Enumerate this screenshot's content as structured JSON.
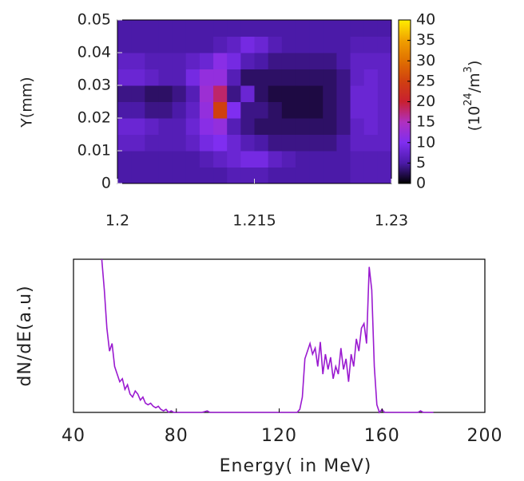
{
  "chart_data": [
    {
      "type": "heatmap",
      "y_label": "Y(mm)",
      "x": [
        1.20075,
        1.20225,
        1.20375,
        1.20525,
        1.20675,
        1.20825,
        1.20975,
        1.21125,
        1.21275,
        1.21425,
        1.21575,
        1.21725,
        1.21875,
        1.22025,
        1.22175,
        1.22325,
        1.22475,
        1.22625,
        1.22775,
        1.22925
      ],
      "y": [
        0.0025,
        0.0075,
        0.0125,
        0.0175,
        0.0225,
        0.0275,
        0.0325,
        0.0375,
        0.0425,
        0.0475
      ],
      "z": [
        [
          5,
          5,
          5,
          5,
          5,
          5,
          5,
          5,
          6,
          6,
          6,
          5,
          5,
          5,
          5,
          5,
          5,
          6,
          6,
          6
        ],
        [
          5,
          5,
          5,
          5,
          5,
          5,
          6,
          7,
          8,
          9,
          9,
          7,
          6,
          5,
          5,
          5,
          5,
          6,
          6,
          6
        ],
        [
          7,
          7,
          6,
          6,
          6,
          7,
          9,
          10,
          8,
          6,
          5,
          4,
          4,
          4,
          4,
          4,
          5,
          7,
          7,
          7
        ],
        [
          8,
          8,
          7,
          6,
          6,
          8,
          11,
          12,
          6,
          4,
          3,
          3,
          3,
          3,
          3,
          3,
          4,
          7,
          8,
          7
        ],
        [
          5,
          5,
          4,
          4,
          5,
          7,
          12,
          25,
          10,
          4,
          4,
          3,
          2,
          2,
          2,
          3,
          4,
          8,
          8,
          7
        ],
        [
          4,
          4,
          3,
          3,
          4,
          6,
          13,
          18,
          4,
          8,
          3,
          2,
          2,
          2,
          2,
          3,
          4,
          8,
          8,
          7
        ],
        [
          8,
          8,
          7,
          6,
          6,
          9,
          12,
          12,
          6,
          3,
          3,
          3,
          3,
          3,
          3,
          3,
          4,
          7,
          8,
          7
        ],
        [
          7,
          7,
          6,
          6,
          6,
          7,
          8,
          11,
          9,
          6,
          5,
          4,
          4,
          4,
          4,
          4,
          5,
          7,
          7,
          7
        ],
        [
          5,
          5,
          5,
          5,
          5,
          5,
          5,
          6,
          7,
          9,
          8,
          6,
          5,
          5,
          5,
          5,
          5,
          6,
          6,
          6
        ],
        [
          5,
          5,
          5,
          5,
          5,
          5,
          5,
          5,
          5,
          5,
          5,
          5,
          5,
          5,
          5,
          5,
          5,
          5,
          5,
          5
        ]
      ],
      "xlim": [
        1.2,
        1.23
      ],
      "xticks": [
        {
          "value": 1.2,
          "label": "1.2"
        },
        1.215,
        1.23
      ],
      "ylim": [
        0,
        0.05
      ],
      "yticks": [
        0,
        0.01,
        0.02,
        0.03,
        0.04,
        0.05
      ],
      "zlim": [
        0,
        40
      ],
      "zticks": [
        0,
        5,
        10,
        15,
        20,
        25,
        30,
        35,
        40
      ],
      "colormap": [
        "#000000",
        "#4b1aa8",
        "#7f2ef0",
        "#b030c0",
        "#c82030",
        "#d04010",
        "#e07000",
        "#f0a000",
        "#ffee00"
      ],
      "colorbar_label": [
        {
          "text": "(10"
        },
        {
          "text": "24",
          "sup": true
        },
        {
          "text": "/m"
        },
        {
          "text": "3",
          "sup": true
        },
        {
          "text": ")"
        }
      ]
    },
    {
      "type": "line",
      "x_label": "Energy( in MeV)",
      "y_label": "dN/dE(a.u)",
      "color": "#9a1ad0",
      "x": [
        51,
        52,
        53,
        54,
        55,
        56,
        57,
        58,
        59,
        60,
        61,
        62,
        63,
        64,
        65,
        66,
        67,
        68,
        69,
        70,
        71,
        72,
        73,
        74,
        75,
        76,
        77,
        78,
        79,
        80,
        85,
        90,
        92,
        93,
        95,
        100,
        105,
        110,
        115,
        120,
        125,
        127,
        128,
        129,
        130,
        131,
        132,
        133,
        134,
        135,
        136,
        137,
        138,
        139,
        140,
        141,
        142,
        143,
        144,
        145,
        146,
        147,
        148,
        149,
        150,
        151,
        152,
        153,
        154,
        155,
        156,
        157,
        158,
        159,
        160,
        161,
        162,
        170,
        174,
        175,
        176,
        180
      ],
      "values": [
        100,
        80,
        55,
        40,
        45,
        30,
        25,
        20,
        22,
        15,
        18,
        12,
        10,
        14,
        12,
        8,
        10,
        6,
        5,
        6,
        4,
        3,
        4,
        2,
        1,
        2,
        0,
        1,
        0,
        0,
        0,
        0,
        1,
        0,
        0,
        0,
        0,
        0,
        0,
        0,
        0,
        0,
        2,
        10,
        35,
        40,
        45,
        38,
        42,
        30,
        46,
        25,
        38,
        28,
        36,
        22,
        30,
        25,
        42,
        28,
        35,
        20,
        38,
        30,
        48,
        40,
        55,
        58,
        45,
        95,
        80,
        30,
        5,
        0,
        2,
        0,
        0,
        0,
        0,
        1,
        0,
        0
      ],
      "xlim": [
        40,
        200
      ],
      "xticks": [
        40,
        80,
        120,
        160,
        200
      ],
      "ylim": [
        0,
        100
      ]
    }
  ]
}
